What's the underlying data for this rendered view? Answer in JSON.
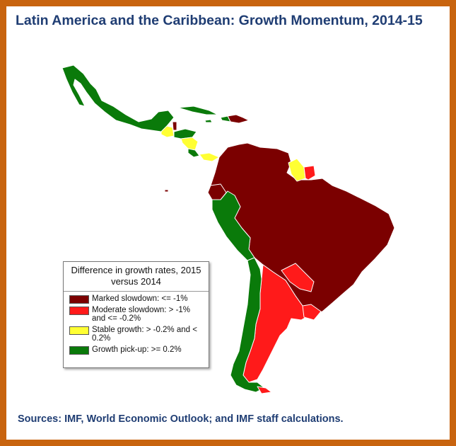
{
  "title": "Latin America and the Caribbean: Growth Momentum, 2014-15",
  "legend": {
    "title": "Difference in growth rates, 2015 versus 2014",
    "items": [
      {
        "label": "Marked slowdown: <= -1%",
        "color": "#7b0000"
      },
      {
        "label": "Moderate slowdown: > -1% and <= -0.2%",
        "color": "#ff1a1a"
      },
      {
        "label": "Stable growth: > -0.2% and < 0.2%",
        "color": "#ffff33"
      },
      {
        "label": "Growth pick-up: >= 0.2%",
        "color": "#0a7a0a"
      }
    ]
  },
  "source": "Sources: IMF, World Economic Outlook; and IMF staff calculations.",
  "colors": {
    "frame": "#c8640f",
    "title_text": "#1f3d73",
    "marked_slowdown": "#7b0000",
    "moderate_slowdown": "#ff1a1a",
    "stable_growth": "#ffff33",
    "growth_pickup": "#0a7a0a",
    "borders": "#ffffff"
  }
}
